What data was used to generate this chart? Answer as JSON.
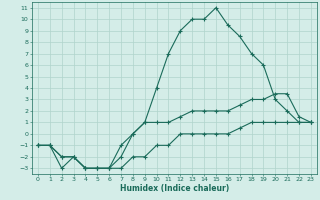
{
  "xlabel": "Humidex (Indice chaleur)",
  "ylabel": "",
  "bg_color": "#d4ede8",
  "grid_color": "#b0d4cc",
  "line_color": "#1a6b5a",
  "xlim": [
    -0.5,
    23.5
  ],
  "ylim": [
    -3.5,
    11.5
  ],
  "xticks": [
    0,
    1,
    2,
    3,
    4,
    5,
    6,
    7,
    8,
    9,
    10,
    11,
    12,
    13,
    14,
    15,
    16,
    17,
    18,
    19,
    20,
    21,
    22,
    23
  ],
  "yticks": [
    -3,
    -2,
    -1,
    0,
    1,
    2,
    3,
    4,
    5,
    6,
    7,
    8,
    9,
    10,
    11
  ],
  "line1_x": [
    0,
    1,
    2,
    3,
    4,
    5,
    6,
    7,
    8,
    9,
    10,
    11,
    12,
    13,
    14,
    15,
    16,
    17,
    18,
    19,
    20,
    21,
    22,
    23
  ],
  "line1_y": [
    -1,
    -1,
    -3,
    -2,
    -3,
    -3,
    -3,
    -2,
    0,
    1,
    4,
    7,
    9,
    10,
    10,
    11,
    9.5,
    8.5,
    7,
    6,
    3,
    2,
    1,
    1
  ],
  "line2_x": [
    0,
    1,
    2,
    3,
    4,
    5,
    6,
    7,
    8,
    9,
    10,
    11,
    12,
    13,
    14,
    15,
    16,
    17,
    18,
    19,
    20,
    21,
    22,
    23
  ],
  "line2_y": [
    -1,
    -1,
    -2,
    -2,
    -3,
    -3,
    -3,
    -1,
    0,
    1,
    1,
    1,
    1.5,
    2,
    2,
    2,
    2,
    2.5,
    3,
    3,
    3.5,
    3.5,
    1.5,
    1
  ],
  "line3_x": [
    0,
    1,
    2,
    3,
    4,
    5,
    6,
    7,
    8,
    9,
    10,
    11,
    12,
    13,
    14,
    15,
    16,
    17,
    18,
    19,
    20,
    21,
    22,
    23
  ],
  "line3_y": [
    -1,
    -1,
    -2,
    -2,
    -3,
    -3,
    -3,
    -3,
    -2,
    -2,
    -1,
    -1,
    0,
    0,
    0,
    0,
    0,
    0.5,
    1,
    1,
    1,
    1,
    1,
    1
  ]
}
